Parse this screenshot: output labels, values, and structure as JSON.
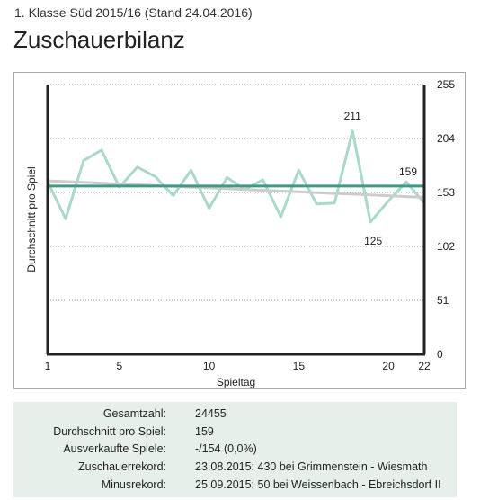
{
  "header": {
    "subtitle": "1. Klasse Süd 2015/16 (Stand 24.04.2016)",
    "title": "Zuschauerbilanz"
  },
  "chart_data": {
    "type": "line",
    "xlabel": "Spieltag",
    "ylabel": "Durchschnitt pro Spiel",
    "x_ticks": [
      "1",
      "5",
      "10",
      "15",
      "20",
      "22"
    ],
    "y_ticks": [
      "0",
      "51",
      "102",
      "153",
      "204",
      "255"
    ],
    "xlim": [
      1,
      22
    ],
    "ylim": [
      0,
      255
    ],
    "y_axis_position": "right",
    "grid": true,
    "series": [
      {
        "values": [
          163,
          128,
          183,
          193,
          158,
          177,
          168,
          150,
          174,
          138,
          167,
          156,
          165,
          130,
          174,
          142,
          143,
          211,
          125,
          145,
          163,
          143
        ],
        "color": "#a9d9cb"
      },
      {
        "values": [
          164,
          163.3,
          162.5,
          161.8,
          161,
          160.3,
          159.5,
          158.8,
          158,
          157.3,
          156.6,
          155.8,
          155.1,
          154.3,
          153.6,
          152.8,
          152.1,
          151.4,
          150.6,
          149.9,
          149.1,
          148.4
        ],
        "color": "#cccccc"
      },
      {
        "values": [
          159,
          159,
          159,
          159,
          159,
          159,
          159,
          159,
          159,
          159,
          159,
          159,
          159,
          159,
          159,
          159,
          159,
          159,
          159,
          159,
          159,
          159
        ],
        "color": "#3e9a86"
      }
    ],
    "annotations": [
      {
        "x": 18,
        "y": 211,
        "text": "211",
        "position": "above"
      },
      {
        "x": 19,
        "y": 125,
        "text": "125",
        "position": "below"
      },
      {
        "x": 22,
        "y": 159,
        "text": "159",
        "position": "above-left"
      }
    ]
  },
  "stats": [
    {
      "label": "Gesamtzahl:",
      "value": "24455"
    },
    {
      "label": "Durchschnitt pro Spiel:",
      "value": "159"
    },
    {
      "label": "Ausverkaufte Spiele:",
      "value": "-/154 (0,0%)"
    },
    {
      "label": "Zuschauerrekord:",
      "value": "23.08.2015: 430 bei Grimmenstein - Wiesmath"
    },
    {
      "label": "Minusrekord:",
      "value": "25.09.2015: 50 bei Weissenbach - Ebreichsdorf II"
    }
  ]
}
